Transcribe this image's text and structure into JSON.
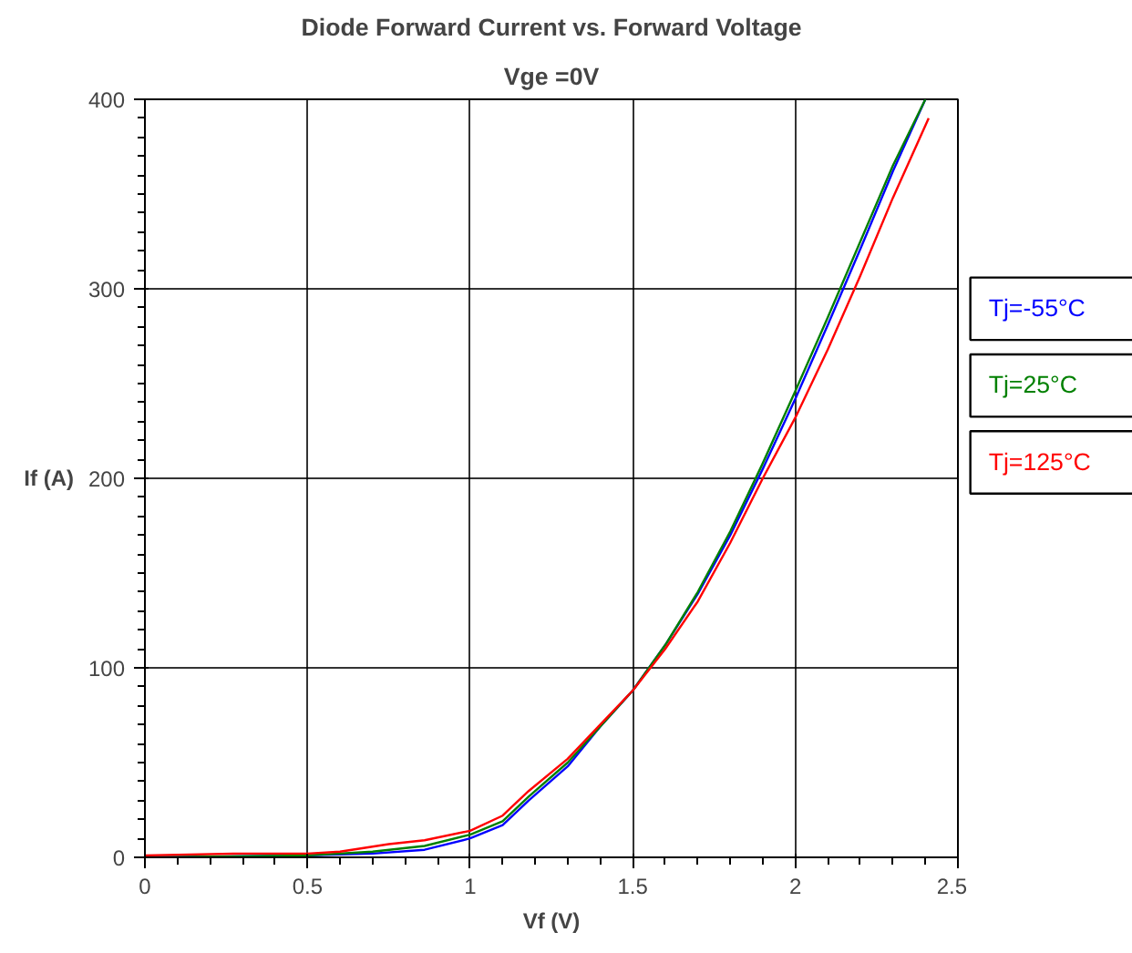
{
  "chart_data": {
    "type": "line",
    "title": "Diode Forward Current vs. Forward Voltage",
    "subtitle": "Vge =0V",
    "xlabel": "Vf (V)",
    "ylabel": "If (A)",
    "xlim": [
      0,
      2.5
    ],
    "xticks": [
      0,
      0.5,
      1,
      1.5,
      2,
      2.5
    ],
    "ylim": [
      0,
      400
    ],
    "yticks": [
      0,
      100,
      200,
      300,
      400
    ],
    "grid": true,
    "legend": "right",
    "series": [
      {
        "name": "Tj=-55°C",
        "color": "#0000ff",
        "x": [
          0,
          0.5,
          0.7,
          0.86,
          1.0,
          1.1,
          1.18,
          1.3,
          1.4,
          1.5,
          1.6,
          1.7,
          1.8,
          1.9,
          2.0,
          2.1,
          2.2,
          2.3,
          2.4
        ],
        "values": [
          0,
          1,
          2,
          4,
          10,
          17,
          30,
          48,
          69,
          88,
          112,
          139,
          170,
          205,
          242,
          281,
          321,
          362,
          400
        ]
      },
      {
        "name": "Tj=25°C",
        "color": "#008000",
        "x": [
          0,
          0.5,
          0.7,
          0.86,
          1.0,
          1.1,
          1.18,
          1.3,
          1.4,
          1.5,
          1.6,
          1.7,
          1.8,
          1.9,
          2.0,
          2.1,
          2.2,
          2.3,
          2.4
        ],
        "values": [
          0,
          1,
          3,
          6,
          12,
          19,
          32,
          50,
          69,
          88,
          112,
          140,
          172,
          208,
          246,
          285,
          325,
          365,
          400
        ]
      },
      {
        "name": "Tj=125°C",
        "color": "#ff0000",
        "x": [
          0,
          0.3,
          0.5,
          0.6,
          0.75,
          0.86,
          1.0,
          1.1,
          1.18,
          1.3,
          1.4,
          1.5,
          1.6,
          1.7,
          1.8,
          1.9,
          2.0,
          2.1,
          2.2,
          2.3,
          2.41
        ],
        "values": [
          1,
          2,
          2,
          3,
          7,
          9,
          14,
          22,
          35,
          52,
          70,
          88,
          110,
          135,
          166,
          200,
          232,
          268,
          307,
          348,
          390
        ]
      }
    ]
  }
}
